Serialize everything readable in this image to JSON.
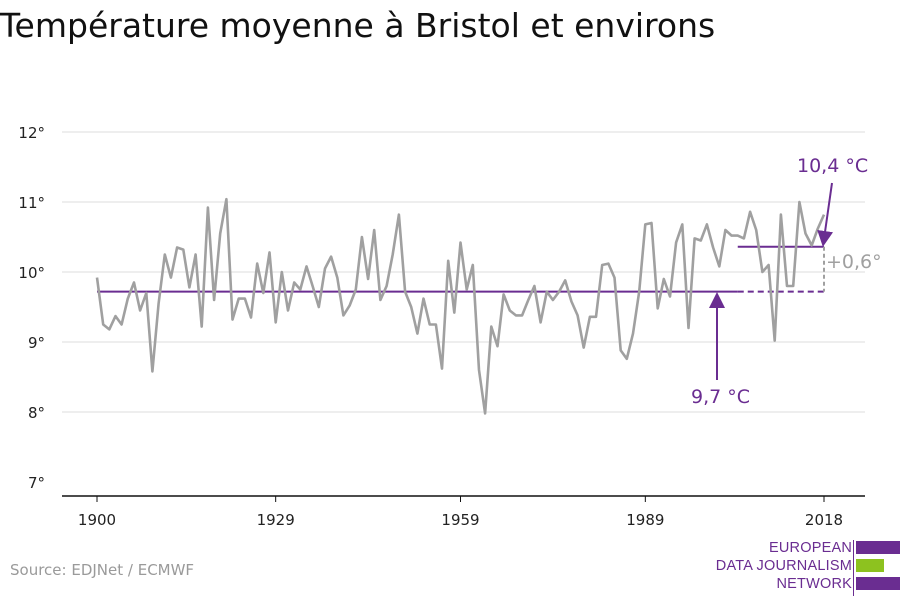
{
  "title": "Température moyenne à Bristol et environs",
  "source": "Source: EDJNet / ECMWF",
  "logo": {
    "lines": [
      "EUROPEAN",
      "DATA JOURNALISM",
      "NETWORK"
    ],
    "colors": [
      "#6a2d91",
      "#8dc21f",
      "#6a2d91"
    ]
  },
  "colors": {
    "series": "#a0a0a0",
    "reference": "#6a2d91",
    "grid": "#dddddd",
    "axis": "#111111",
    "delta": "#a0a0a0"
  },
  "chart_data": {
    "type": "line",
    "title": "Température moyenne à Bristol et environs",
    "xlabel": "",
    "ylabel": "",
    "xlim": [
      1900,
      2018
    ],
    "ylim": [
      7,
      12
    ],
    "x_ticks": [
      1900,
      1929,
      1959,
      1989,
      2018
    ],
    "x_tick_labels": [
      "1900",
      "1929",
      "1959",
      "1989",
      "2018"
    ],
    "y_ticks": [
      7,
      8,
      9,
      10,
      11,
      12
    ],
    "y_tick_labels": [
      "7°",
      "8°",
      "9°",
      "10°",
      "11°",
      "12°"
    ],
    "grid": true,
    "series": [
      {
        "x": [
          1900,
          1901,
          1902,
          1903,
          1904,
          1905,
          1906,
          1907,
          1908,
          1909,
          1910,
          1911,
          1912,
          1913,
          1914,
          1915,
          1916,
          1917,
          1918,
          1919,
          1920,
          1921,
          1922,
          1923,
          1924,
          1925,
          1926,
          1927,
          1928,
          1929,
          1930,
          1931,
          1932,
          1933,
          1934,
          1935,
          1936,
          1937,
          1938,
          1939,
          1940,
          1941,
          1942,
          1943,
          1944,
          1945,
          1946,
          1947,
          1948,
          1949,
          1950,
          1951,
          1952,
          1953,
          1954,
          1955,
          1956,
          1957,
          1958,
          1959,
          1960,
          1961,
          1962,
          1963,
          1964,
          1965,
          1966,
          1967,
          1968,
          1969,
          1970,
          1971,
          1972,
          1973,
          1974,
          1975,
          1976,
          1977,
          1978,
          1979,
          1980,
          1981,
          1982,
          1983,
          1984,
          1985,
          1986,
          1987,
          1988,
          1989,
          1990,
          1991,
          1992,
          1993,
          1994,
          1995,
          1996,
          1997,
          1998,
          1999,
          2000,
          2001,
          2002,
          2003,
          2004,
          2005,
          2006,
          2007,
          2008,
          2009,
          2010,
          2011,
          2012,
          2013,
          2014,
          2015,
          2016,
          2017,
          2018
        ],
        "values": [
          9.92,
          9.25,
          9.18,
          9.37,
          9.25,
          9.62,
          9.85,
          9.45,
          9.7,
          8.58,
          9.55,
          10.25,
          9.92,
          10.35,
          10.32,
          9.78,
          10.25,
          9.22,
          10.92,
          9.6,
          10.55,
          11.04,
          9.32,
          9.62,
          9.62,
          9.35,
          10.12,
          9.7,
          10.28,
          9.28,
          10.0,
          9.45,
          9.85,
          9.75,
          10.08,
          9.8,
          9.5,
          10.05,
          10.22,
          9.92,
          9.38,
          9.52,
          9.75,
          10.5,
          9.9,
          10.6,
          9.6,
          9.8,
          10.25,
          10.82,
          9.72,
          9.5,
          9.12,
          9.62,
          9.25,
          9.25,
          8.62,
          10.16,
          9.42,
          10.42,
          9.75,
          10.1,
          8.6,
          7.98,
          9.22,
          8.94,
          9.68,
          9.45,
          9.38,
          9.38,
          9.6,
          9.8,
          9.28,
          9.72,
          9.6,
          9.72,
          9.88,
          9.58,
          9.38,
          8.92,
          9.36,
          9.36,
          10.1,
          10.12,
          9.92,
          8.88,
          8.76,
          9.12,
          9.72,
          10.68,
          10.7,
          9.48,
          9.9,
          9.65,
          10.42,
          10.68,
          9.2,
          10.48,
          10.45,
          10.68,
          10.35,
          10.08,
          10.6,
          10.52,
          10.52,
          10.48,
          10.86,
          10.6,
          10.0,
          10.1,
          9.02,
          10.82,
          9.8,
          9.8,
          11.0,
          10.55,
          10.38,
          10.62,
          10.82
        ]
      }
    ],
    "reference_lines": [
      {
        "label": "9,7 °C",
        "value": 9.72,
        "x_start": 1900,
        "x_solid_end": 2004,
        "x_end": 2018
      },
      {
        "label": "10,4 °C",
        "value": 10.36,
        "x_start": 2004,
        "x_end": 2018
      }
    ],
    "annotations": [
      {
        "text": "10,4 °C",
        "color": "#6a2d91"
      },
      {
        "text": "9,7 °C",
        "color": "#6a2d91"
      },
      {
        "text": "+0,6°",
        "color": "#a0a0a0"
      }
    ]
  }
}
